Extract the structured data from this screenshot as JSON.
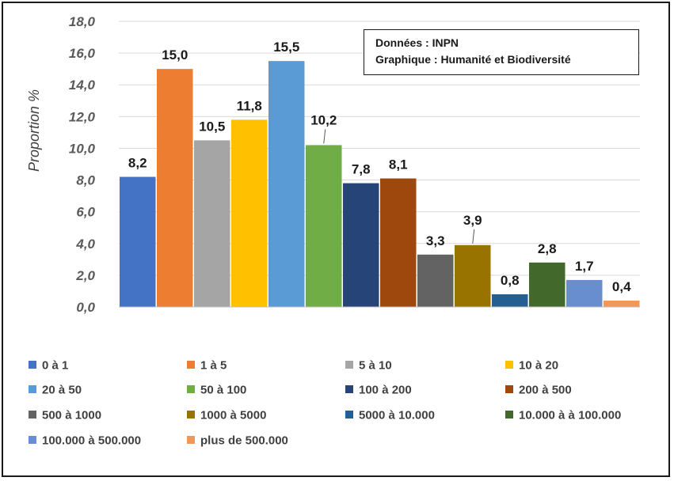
{
  "chart_data": {
    "type": "bar",
    "ylabel": "Proportion %",
    "ylim": [
      0,
      18
    ],
    "yticks": [
      "0,0",
      "2,0",
      "4,0",
      "6,0",
      "8,0",
      "10,0",
      "12,0",
      "14,0",
      "16,0",
      "18,0"
    ],
    "grid": true,
    "legend_position": "bottom",
    "categories": [
      "0 à 1",
      "1 à  5",
      "5 à 10",
      "10 à 20",
      "20 à 50",
      "50 à 100",
      "100 à 200",
      "200 à 500",
      "500 à 1000",
      "1000 à 5000",
      "5000 à 10.000",
      "10.000 à à 100.000",
      "100.000 à 500.000",
      "plus de 500.000"
    ],
    "values": [
      8.2,
      15.0,
      10.5,
      11.8,
      15.5,
      10.2,
      7.8,
      8.1,
      3.3,
      3.9,
      0.8,
      2.8,
      1.7,
      0.4
    ],
    "value_labels": [
      "8,2",
      "15,0",
      "10,5",
      "11,8",
      "15,5",
      "10,2",
      "7,8",
      "8,1",
      "3,3",
      "3,9",
      "0,8",
      "2,8",
      "1,7",
      "0,4"
    ],
    "colors": [
      "#4472c4",
      "#ed7d31",
      "#a5a5a5",
      "#ffc000",
      "#5b9bd5",
      "#70ad47",
      "#264478",
      "#9e480e",
      "#636363",
      "#997300",
      "#255e91",
      "#43682b",
      "#698ed0",
      "#f1975a"
    ]
  },
  "source_box": {
    "line1": "Données : INPN",
    "line2": "Graphique : Humanité et Biodiversité"
  }
}
